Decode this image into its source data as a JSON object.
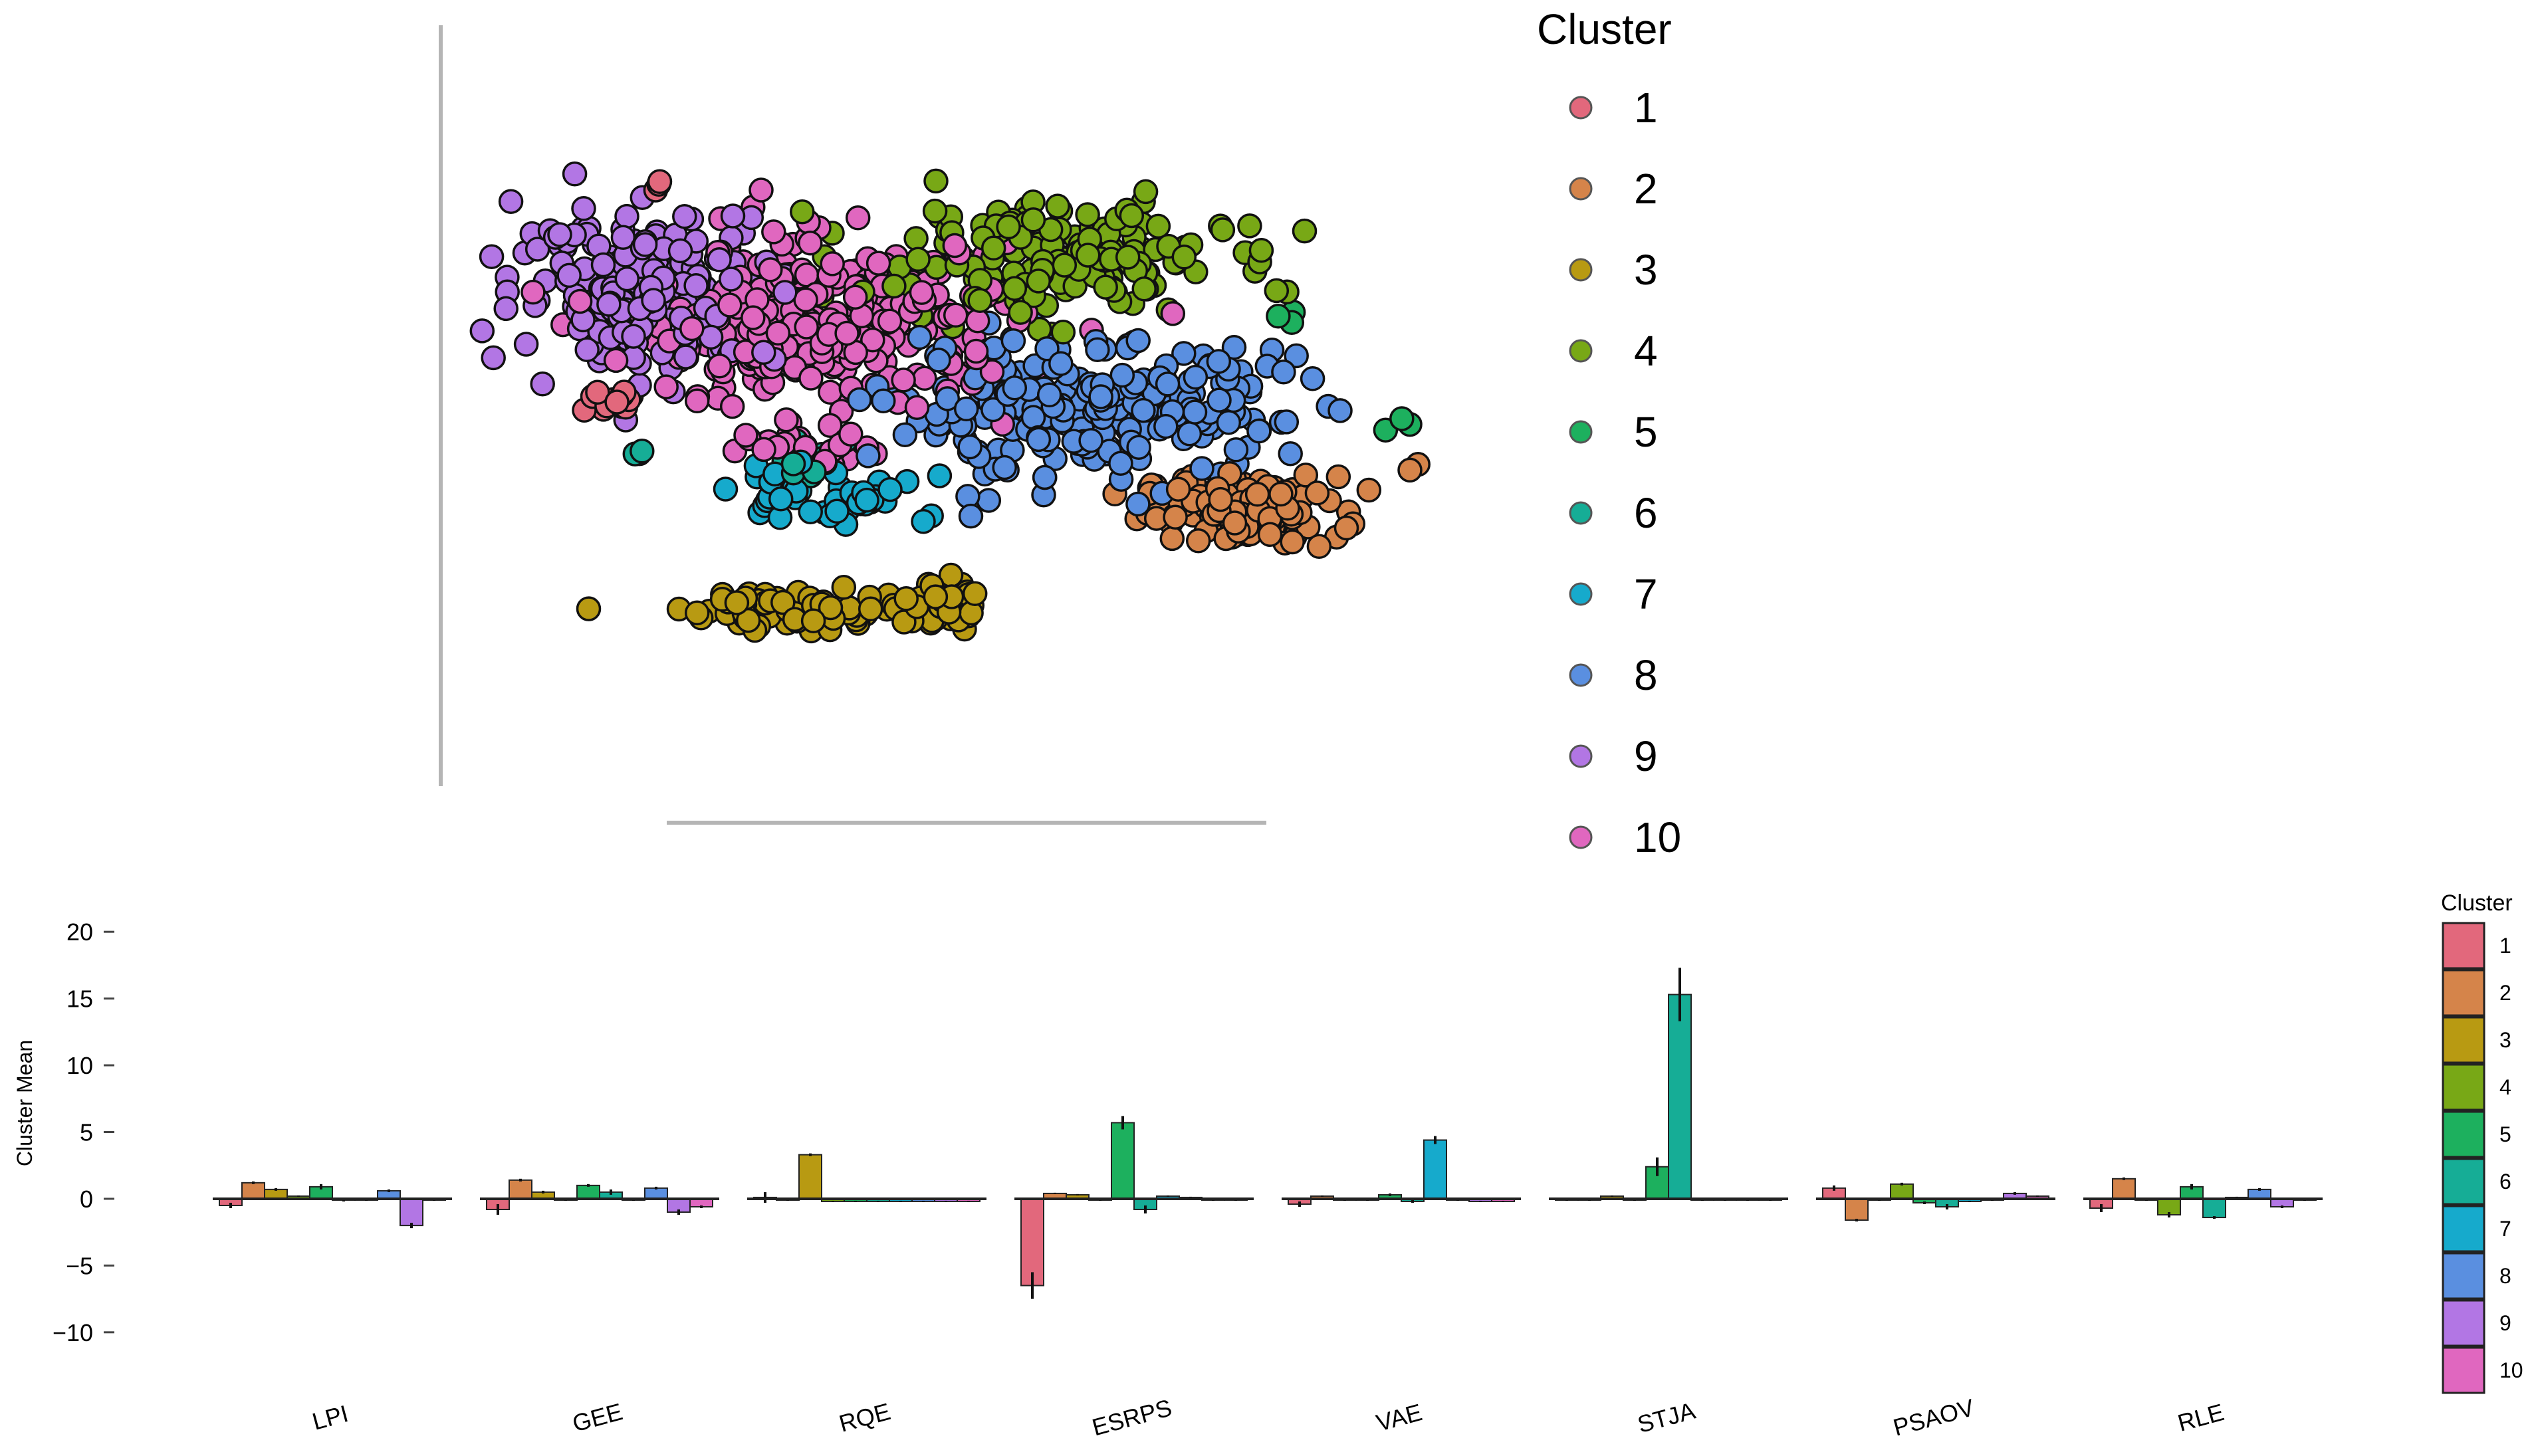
{
  "chart_data": [
    {
      "type": "scatter",
      "title": "",
      "xlabel": "",
      "ylabel": "",
      "legend": {
        "title": "Cluster",
        "placement": "right",
        "entries": [
          "1",
          "2",
          "3",
          "4",
          "5",
          "6",
          "7",
          "8",
          "9",
          "10"
        ]
      },
      "xlim": [
        0,
        100
      ],
      "ylim": [
        0,
        100
      ],
      "clusters": [
        {
          "name": "1",
          "blobs": [
            {
              "x": 7,
              "y": 53,
              "sx": 3,
              "sy": 1,
              "n": 14
            },
            {
              "x": 12,
              "y": 90,
              "sx": 0.5,
              "sy": 0.5,
              "n": 2
            }
          ],
          "outliers": [
            [
              12,
              90
            ]
          ]
        },
        {
          "name": "2",
          "blobs": [
            {
              "x": 84,
              "y": 34,
              "sx": 6,
              "sy": 3,
              "n": 120
            }
          ],
          "outliers": [
            [
              105,
              41
            ],
            [
              106,
              42
            ]
          ]
        },
        {
          "name": "3",
          "blobs": [
            {
              "x": 33,
              "y": 17,
              "sx": 9,
              "sy": 2,
              "n": 80
            },
            {
              "x": 47,
              "y": 18,
              "sx": 2,
              "sy": 2.5,
              "n": 20
            }
          ]
        },
        {
          "name": "4",
          "blobs": [
            {
              "x": 60,
              "y": 78,
              "sx": 11,
              "sy": 5,
              "n": 180
            }
          ],
          "outliers": [
            [
              48,
              83
            ],
            [
              9,
              54
            ]
          ]
        },
        {
          "name": "5",
          "blobs": [
            {
              "x": 90,
              "y": 68,
              "sx": 1,
              "sy": 1,
              "n": 3
            }
          ],
          "outliers": [
            [
              102,
              48
            ],
            [
              105,
              49
            ],
            [
              104,
              50
            ]
          ]
        },
        {
          "name": "6",
          "blobs": [
            {
              "x": 10,
              "y": 44,
              "sx": 0.4,
              "sy": 0.4,
              "n": 3
            },
            {
              "x": 30,
              "y": 42,
              "sx": 3,
              "sy": 2.5,
              "n": 15
            }
          ]
        },
        {
          "name": "7",
          "blobs": [
            {
              "x": 27,
              "y": 37,
              "sx": 3,
              "sy": 3,
              "n": 20
            },
            {
              "x": 37,
              "y": 36,
              "sx": 3,
              "sy": 2,
              "n": 25
            }
          ],
          "outliers": [
            [
              45,
              32
            ],
            [
              46,
              33
            ],
            [
              43,
              39
            ],
            [
              47,
              40
            ]
          ]
        },
        {
          "name": "8",
          "blobs": [
            {
              "x": 65,
              "y": 51,
              "sx": 12,
              "sy": 6,
              "n": 250
            }
          ],
          "outliers": [
            [
              88,
              62
            ],
            [
              91,
              61
            ],
            [
              93,
              57
            ]
          ]
        },
        {
          "name": "9",
          "blobs": [
            {
              "x": 11,
              "y": 73,
              "sx": 8,
              "sy": 7,
              "n": 190
            },
            {
              "x": 1,
              "y": 82,
              "sx": 1.2,
              "sy": 0.3,
              "n": 8
            }
          ]
        },
        {
          "name": "10",
          "blobs": [
            {
              "x": 33,
              "y": 66,
              "sx": 12,
              "sy": 7,
              "n": 320
            },
            {
              "x": 30,
              "y": 45,
              "sx": 5,
              "sy": 1.5,
              "n": 20
            }
          ],
          "outliers": [
            [
              25,
              90
            ],
            [
              24,
              87
            ],
            [
              20,
              85
            ],
            [
              27,
              45
            ]
          ]
        }
      ]
    },
    {
      "type": "bar",
      "title": "",
      "xlabel": "",
      "ylabel": "Cluster Mean",
      "ylim": [
        -12,
        22
      ],
      "yticks": [
        "20",
        "15",
        "10",
        "5",
        "0",
        "−5",
        "−10"
      ],
      "ytick_values": [
        20,
        15,
        10,
        5,
        0,
        -5,
        -10
      ],
      "categories": [
        "LPI",
        "GEE",
        "RQE",
        "ESRPS",
        "VAE",
        "STJA",
        "PSAOV",
        "RLE"
      ],
      "legend": {
        "title": "Cluster",
        "placement": "right",
        "entries": [
          "1",
          "2",
          "3",
          "4",
          "5",
          "6",
          "7",
          "8",
          "9",
          "10"
        ]
      },
      "series": [
        {
          "name": "1",
          "values": [
            -0.5,
            -0.8,
            0.1,
            -6.5,
            -0.4,
            -0.1,
            0.8,
            -0.7
          ],
          "errors": [
            0.2,
            0.4,
            0.4,
            1.0,
            0.2,
            0.05,
            0.2,
            0.3
          ]
        },
        {
          "name": "2",
          "values": [
            1.2,
            1.4,
            -0.1,
            0.4,
            0.2,
            -0.1,
            -1.6,
            1.5
          ],
          "errors": [
            0.1,
            0.1,
            0.05,
            0.05,
            0.05,
            0.05,
            0.1,
            0.1
          ]
        },
        {
          "name": "3",
          "values": [
            0.7,
            0.5,
            3.3,
            0.3,
            -0.1,
            0.2,
            -0.1,
            -0.1
          ],
          "errors": [
            0.1,
            0.1,
            0.1,
            0.05,
            0.05,
            0.05,
            0.05,
            0.05
          ]
        },
        {
          "name": "4",
          "values": [
            0.2,
            -0.1,
            -0.2,
            -0.1,
            -0.1,
            -0.1,
            1.1,
            -1.2
          ],
          "errors": [
            0.05,
            0.05,
            0.05,
            0.05,
            0.05,
            0.05,
            0.1,
            0.2
          ]
        },
        {
          "name": "5",
          "values": [
            0.9,
            1.0,
            -0.2,
            5.7,
            0.3,
            2.4,
            -0.3,
            0.9
          ],
          "errors": [
            0.2,
            0.1,
            0.05,
            0.5,
            0.1,
            0.7,
            0.1,
            0.2
          ]
        },
        {
          "name": "6",
          "values": [
            -0.1,
            0.5,
            -0.2,
            -0.8,
            -0.2,
            15.3,
            -0.6,
            -1.4
          ],
          "errors": [
            0.1,
            0.2,
            0.05,
            0.3,
            0.1,
            2.0,
            0.2,
            0.1
          ]
        },
        {
          "name": "7",
          "values": [
            -0.1,
            -0.1,
            -0.2,
            0.2,
            4.4,
            -0.1,
            -0.2,
            0.1
          ],
          "errors": [
            0.05,
            0.05,
            0.05,
            0.05,
            0.3,
            0.05,
            0.05,
            0.05
          ]
        },
        {
          "name": "8",
          "values": [
            0.6,
            0.8,
            -0.2,
            0.1,
            -0.1,
            -0.1,
            -0.1,
            0.7
          ],
          "errors": [
            0.1,
            0.1,
            0.05,
            0.05,
            0.05,
            0.05,
            0.05,
            0.1
          ]
        },
        {
          "name": "9",
          "values": [
            -2.0,
            -1.0,
            -0.2,
            -0.1,
            -0.2,
            -0.1,
            0.4,
            -0.6
          ],
          "errors": [
            0.2,
            0.2,
            0.05,
            0.05,
            0.05,
            0.05,
            0.1,
            0.1
          ]
        },
        {
          "name": "10",
          "values": [
            -0.1,
            -0.6,
            -0.2,
            -0.1,
            -0.2,
            -0.1,
            0.2,
            -0.1
          ],
          "errors": [
            0.05,
            0.1,
            0.05,
            0.05,
            0.05,
            0.05,
            0.05,
            0.05
          ]
        }
      ]
    }
  ],
  "palette": [
    "#e2687c",
    "#d5844a",
    "#b89a12",
    "#78a816",
    "#1db05e",
    "#16ad96",
    "#16aacc",
    "#5a8fe0",
    "#b276e4",
    "#e067bf"
  ]
}
